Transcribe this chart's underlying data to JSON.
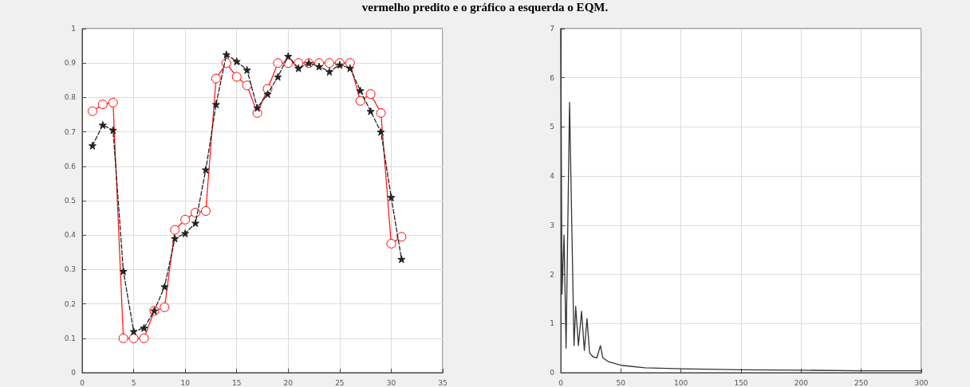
{
  "chart_data": [
    {
      "type": "line",
      "title": "vermelho predito e o gráfico a esquerda o EQM.",
      "x": [
        1,
        2,
        3,
        4,
        5,
        6,
        7,
        8,
        9,
        10,
        11,
        12,
        13,
        14,
        15,
        16,
        17,
        18,
        19,
        20,
        21,
        22,
        23,
        24,
        25,
        26,
        27,
        28,
        29,
        30,
        31
      ],
      "series": [
        {
          "color": "#222222",
          "marker": "star",
          "line_style": "dashed",
          "values": [
            0.66,
            0.72,
            0.705,
            0.295,
            0.12,
            0.13,
            0.18,
            0.25,
            0.39,
            0.405,
            0.435,
            0.59,
            0.78,
            0.925,
            0.905,
            0.88,
            0.77,
            0.81,
            0.86,
            0.92,
            0.885,
            0.9,
            0.89,
            0.875,
            0.895,
            0.885,
            0.82,
            0.76,
            0.7,
            0.51,
            0.33
          ]
        },
        {
          "color": "#ff0000",
          "marker": "circle",
          "line_style": "dotted",
          "values": [
            0.76,
            0.78,
            0.785,
            0.1,
            0.1,
            0.1,
            0.18,
            0.19,
            0.415,
            0.445,
            0.465,
            0.47,
            0.855,
            0.9,
            0.86,
            0.835,
            0.755,
            0.825,
            0.9,
            0.9,
            0.9,
            0.9,
            0.9,
            0.9,
            0.9,
            0.9,
            0.79,
            0.81,
            0.755,
            0.375,
            0.395
          ]
        }
      ],
      "xlim": [
        0,
        35
      ],
      "xticks": [
        0,
        5,
        10,
        15,
        20,
        25,
        30,
        35
      ],
      "ylim": [
        0,
        1
      ],
      "yticks": [
        0,
        0.1,
        0.2,
        0.3,
        0.4,
        0.5,
        0.6,
        0.7,
        0.8,
        0.9,
        1
      ],
      "grid": true
    },
    {
      "type": "line",
      "x": [
        0,
        1,
        2.7,
        4.4,
        7.3,
        11,
        12.4,
        14.7,
        17.3,
        19.6,
        21.8,
        24,
        27,
        30,
        33,
        35,
        40,
        50,
        70,
        100,
        150,
        200,
        250,
        300
      ],
      "series": [
        {
          "color": "#333333",
          "marker": "none",
          "line_style": "solid",
          "values": [
            7,
            1.6,
            2.8,
            0.5,
            5.5,
            0.55,
            1.35,
            0.55,
            1.25,
            0.45,
            1.1,
            0.4,
            0.32,
            0.3,
            0.55,
            0.3,
            0.22,
            0.15,
            0.1,
            0.08,
            0.06,
            0.05,
            0.04,
            0.04
          ]
        }
      ],
      "xlim": [
        0,
        300
      ],
      "xticks": [
        0,
        50,
        100,
        150,
        200,
        250,
        300
      ],
      "ylim": [
        0,
        7
      ],
      "yticks": [
        0,
        1,
        2,
        3,
        4,
        5,
        6,
        7
      ],
      "grid": true
    }
  ]
}
